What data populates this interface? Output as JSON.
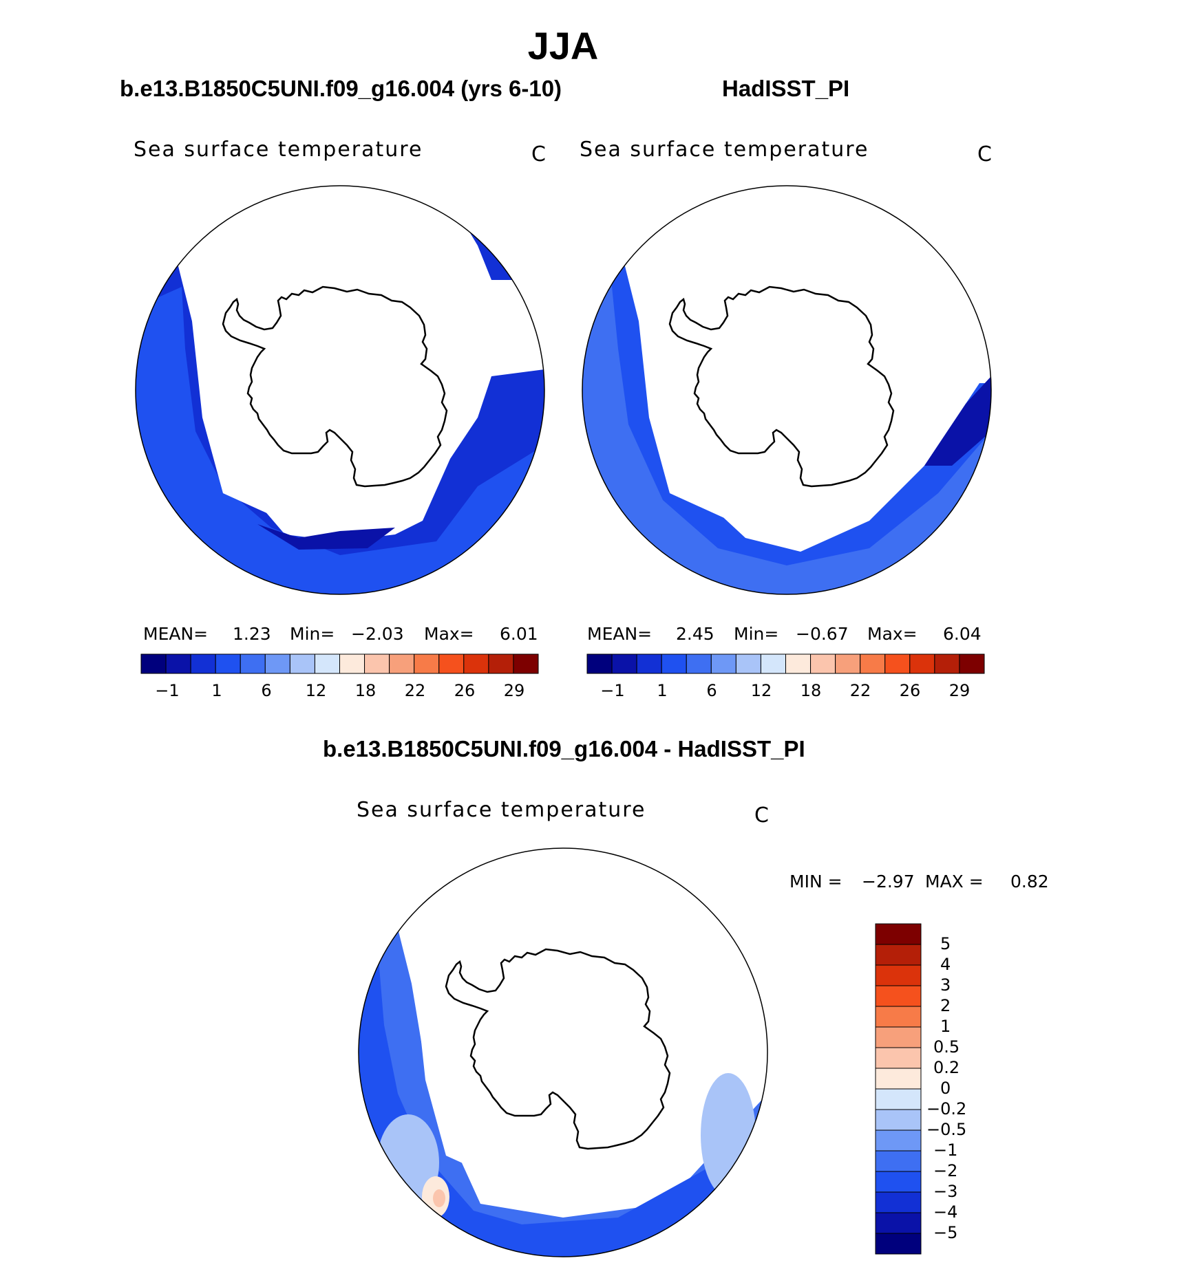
{
  "figure": {
    "season": "JJA",
    "panels": [
      {
        "id": "model",
        "title": "b.e13.B1850C5UNI.f09_g16.004 (yrs 6-10)",
        "variable": "Sea surface temperature",
        "units": "C",
        "mean_label": "MEAN=",
        "mean": "1.23",
        "min_label": "Min=",
        "min": "-2.03",
        "max_label": "Max=",
        "max": "6.01"
      },
      {
        "id": "obs",
        "title": "HadISST_PI",
        "variable": "Sea surface temperature",
        "units": "C",
        "mean_label": "MEAN=",
        "mean": "2.45",
        "min_label": "Min=",
        "min": "-0.67",
        "max_label": "Max=",
        "max": "6.04"
      },
      {
        "id": "diff",
        "title": "b.e13.B1850C5UNI.f09_g16.004 - HadISST_PI",
        "variable": "Sea surface temperature",
        "units": "C",
        "min_label": "MIN =",
        "min": "-2.97",
        "max_label": "MAX =",
        "max": "0.82"
      }
    ],
    "colorbar_abs": {
      "colors": [
        "#00007d",
        "#0a12a8",
        "#1230d5",
        "#1f51f0",
        "#3e6ff2",
        "#6e98f6",
        "#a9c4f8",
        "#d4e6fb",
        "#fdeadc",
        "#fbc5ad",
        "#f7a07b",
        "#f77b48",
        "#f5511d",
        "#db330b",
        "#b41f08",
        "#7d0000"
      ],
      "tick_labels": [
        "-1",
        "1",
        "6",
        "12",
        "18",
        "22",
        "26",
        "29"
      ]
    },
    "colorbar_diff": {
      "colors": [
        "#7d0000",
        "#b41f08",
        "#db330b",
        "#f5511d",
        "#f77b48",
        "#f7a07b",
        "#fbc5ad",
        "#fdeadc",
        "#d4e6fb",
        "#a9c4f8",
        "#6e98f6",
        "#3e6ff2",
        "#1f51f0",
        "#1230d5",
        "#0a12a8",
        "#00007d"
      ],
      "tick_labels": [
        "5",
        "4",
        "3",
        "2",
        "1",
        "0.5",
        "0.2",
        "0",
        "-0.2",
        "-0.5",
        "-1",
        "-2",
        "-3",
        "-4",
        "-5"
      ]
    }
  }
}
